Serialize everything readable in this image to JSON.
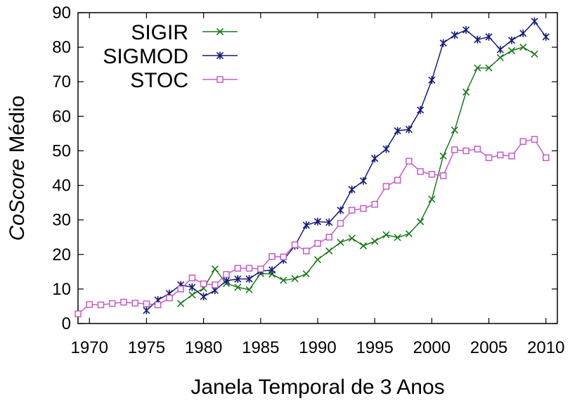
{
  "chart_data": {
    "type": "line",
    "xlabel": "Janela Temporal de 3 Anos",
    "ylabel_italic": "CoScore",
    "ylabel_rest": " Médio",
    "xlim": [
      1969,
      2011
    ],
    "ylim": [
      0,
      90
    ],
    "xticks": [
      1970,
      1975,
      1980,
      1985,
      1990,
      1995,
      2000,
      2005,
      2010
    ],
    "yticks": [
      0,
      10,
      20,
      30,
      40,
      50,
      60,
      70,
      80,
      90
    ],
    "grid": false,
    "legend_position": "top-left",
    "series": [
      {
        "name": "SIGIR",
        "color": "#1a7a1a",
        "marker": "x",
        "x": [
          1978,
          1979,
          1980,
          1981,
          1982,
          1983,
          1984,
          1985,
          1986,
          1987,
          1988,
          1989,
          1990,
          1991,
          1992,
          1993,
          1994,
          1995,
          1996,
          1997,
          1998,
          1999,
          2000,
          2001,
          2002,
          2003,
          2004,
          2005,
          2006,
          2007,
          2008,
          2009
        ],
        "y": [
          5.8,
          8.3,
          10.2,
          15.8,
          11.6,
          10.5,
          9.8,
          14.5,
          14.3,
          12.5,
          13.0,
          14.4,
          18.5,
          21.0,
          23.5,
          24.7,
          22.5,
          23.8,
          25.7,
          24.9,
          26.0,
          29.5,
          36.0,
          48.5,
          56.0,
          67.0,
          74.0,
          74.0,
          77.0,
          79.0,
          80.0,
          78.0
        ]
      },
      {
        "name": "SIGMOD",
        "color": "#141a7a",
        "marker": "asterisk",
        "x": [
          1975,
          1976,
          1977,
          1978,
          1979,
          1980,
          1981,
          1982,
          1983,
          1984,
          1985,
          1986,
          1987,
          1988,
          1989,
          1990,
          1991,
          1992,
          1993,
          1994,
          1995,
          1996,
          1997,
          1998,
          1999,
          2000,
          2001,
          2002,
          2003,
          2004,
          2005,
          2006,
          2007,
          2008,
          2009,
          2010
        ],
        "y": [
          3.8,
          6.8,
          8.7,
          11.2,
          10.5,
          7.8,
          9.6,
          12.4,
          12.9,
          12.9,
          15.2,
          15.5,
          18.4,
          22.5,
          28.5,
          29.5,
          29.3,
          32.8,
          38.8,
          41.3,
          47.8,
          50.5,
          55.8,
          56.2,
          61.8,
          70.5,
          81.2,
          83.5,
          85.0,
          82.2,
          83.0,
          79.3,
          82.0,
          84.0,
          87.5,
          83.0
        ]
      },
      {
        "name": "STOC",
        "color": "#c55cc5",
        "marker": "square",
        "x": [
          1969,
          1970,
          1971,
          1972,
          1973,
          1974,
          1975,
          1976,
          1977,
          1978,
          1979,
          1980,
          1981,
          1982,
          1983,
          1984,
          1985,
          1986,
          1987,
          1988,
          1989,
          1990,
          1991,
          1992,
          1993,
          1994,
          1995,
          1996,
          1997,
          1998,
          1999,
          2000,
          2001,
          2002,
          2003,
          2004,
          2005,
          2006,
          2007,
          2008,
          2009,
          2010
        ],
        "y": [
          2.8,
          5.5,
          5.4,
          5.8,
          6.2,
          5.9,
          5.7,
          5.4,
          7.4,
          10.0,
          13.2,
          11.5,
          11.2,
          14.2,
          16.0,
          16.0,
          15.8,
          19.4,
          19.3,
          22.8,
          21.0,
          23.2,
          25.0,
          29.0,
          32.8,
          33.3,
          34.5,
          39.7,
          41.5,
          47.0,
          44.0,
          43.2,
          42.8,
          50.3,
          50.0,
          50.5,
          48.0,
          48.8,
          48.5,
          52.7,
          53.3,
          48.0
        ]
      }
    ]
  }
}
